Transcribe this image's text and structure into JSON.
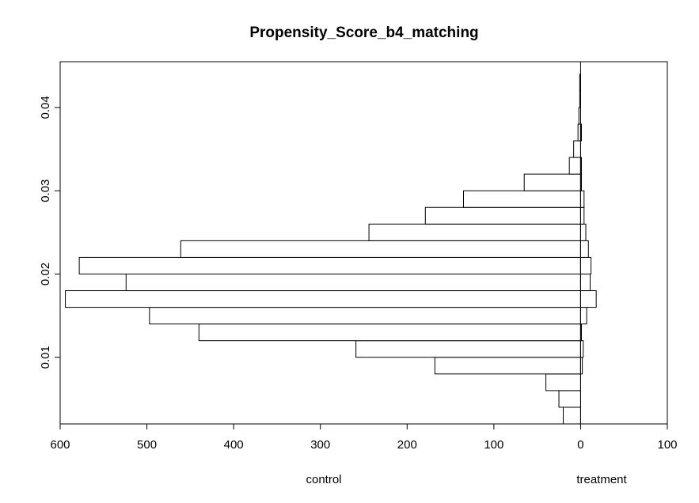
{
  "chart_data": {
    "type": "bar",
    "orientation": "horizontal-mirrored",
    "title": "Propensity_Score_b4_matching",
    "group_labels": {
      "left": "control",
      "right": "treatment"
    },
    "xlim": [
      -600,
      100
    ],
    "ylim": [
      0.002,
      0.0455
    ],
    "x_ticks": [
      -600,
      -500,
      -400,
      -300,
      -200,
      -100,
      0,
      100
    ],
    "x_tick_labels": [
      "600",
      "500",
      "400",
      "300",
      "200",
      "100",
      "0",
      "100"
    ],
    "y_ticks": [
      0.01,
      0.02,
      0.03,
      0.04
    ],
    "y_tick_labels": [
      "0.01",
      "0.02",
      "0.03",
      "0.04"
    ],
    "grid": false,
    "bin_width": 0.002,
    "bins": [
      {
        "lower": 0.002,
        "upper": 0.004,
        "control": 20,
        "treatment": 0
      },
      {
        "lower": 0.004,
        "upper": 0.006,
        "control": 25,
        "treatment": 0
      },
      {
        "lower": 0.006,
        "upper": 0.008,
        "control": 40,
        "treatment": 0
      },
      {
        "lower": 0.008,
        "upper": 0.01,
        "control": 168,
        "treatment": 2
      },
      {
        "lower": 0.01,
        "upper": 0.012,
        "control": 259,
        "treatment": 3
      },
      {
        "lower": 0.012,
        "upper": 0.014,
        "control": 440,
        "treatment": 1
      },
      {
        "lower": 0.014,
        "upper": 0.016,
        "control": 497,
        "treatment": 7
      },
      {
        "lower": 0.016,
        "upper": 0.018,
        "control": 594,
        "treatment": 18
      },
      {
        "lower": 0.018,
        "upper": 0.02,
        "control": 524,
        "treatment": 11
      },
      {
        "lower": 0.02,
        "upper": 0.022,
        "control": 578,
        "treatment": 12
      },
      {
        "lower": 0.022,
        "upper": 0.024,
        "control": 461,
        "treatment": 9
      },
      {
        "lower": 0.024,
        "upper": 0.026,
        "control": 244,
        "treatment": 6
      },
      {
        "lower": 0.026,
        "upper": 0.028,
        "control": 179,
        "treatment": 4
      },
      {
        "lower": 0.028,
        "upper": 0.03,
        "control": 135,
        "treatment": 4
      },
      {
        "lower": 0.03,
        "upper": 0.032,
        "control": 65,
        "treatment": 1
      },
      {
        "lower": 0.032,
        "upper": 0.034,
        "control": 13,
        "treatment": 1
      },
      {
        "lower": 0.034,
        "upper": 0.036,
        "control": 8,
        "treatment": 0
      },
      {
        "lower": 0.036,
        "upper": 0.038,
        "control": 3,
        "treatment": 1
      },
      {
        "lower": 0.038,
        "upper": 0.04,
        "control": 2,
        "treatment": 0
      },
      {
        "lower": 0.04,
        "upper": 0.042,
        "control": 1,
        "treatment": 0
      },
      {
        "lower": 0.042,
        "upper": 0.044,
        "control": 1,
        "treatment": 0
      }
    ]
  }
}
